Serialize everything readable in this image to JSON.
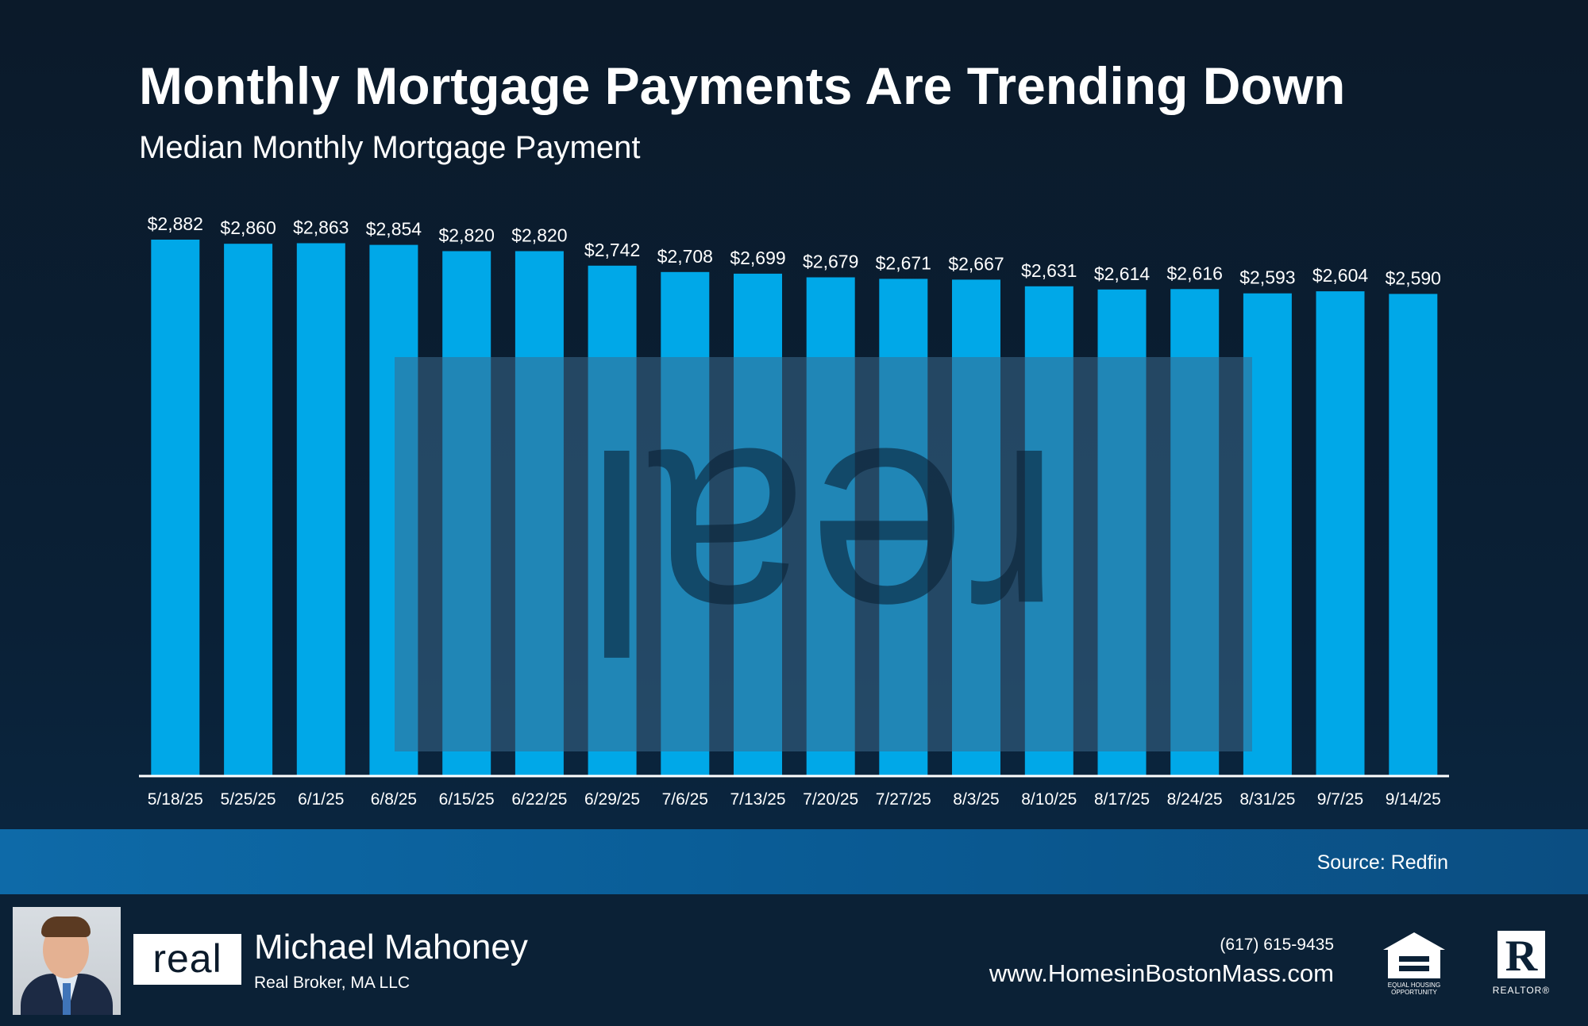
{
  "header": {
    "title": "Monthly Mortgage Payments Are Trending Down",
    "subtitle": "Median Monthly Mortgage Payment"
  },
  "chart_data": {
    "type": "bar",
    "title": "Median Monthly Mortgage Payment",
    "xlabel": "",
    "ylabel": "",
    "categories": [
      "5/18/25",
      "5/25/25",
      "6/1/25",
      "6/8/25",
      "6/15/25",
      "6/22/25",
      "6/29/25",
      "7/6/25",
      "7/13/25",
      "7/20/25",
      "7/27/25",
      "8/3/25",
      "8/10/25",
      "8/17/25",
      "8/24/25",
      "8/31/25",
      "9/7/25",
      "9/14/25"
    ],
    "values": [
      2882,
      2860,
      2863,
      2854,
      2820,
      2820,
      2742,
      2708,
      2699,
      2679,
      2671,
      2667,
      2631,
      2614,
      2616,
      2593,
      2604,
      2590
    ],
    "data_labels": [
      "$2,882",
      "$2,860",
      "$2,863",
      "$2,854",
      "$2,820",
      "$2,820",
      "$2,742",
      "$2,708",
      "$2,699",
      "$2,679",
      "$2,671",
      "$2,667",
      "$2,631",
      "$2,614",
      "$2,616",
      "$2,593",
      "$2,604",
      "$2,590"
    ],
    "ylim": [
      0,
      2882
    ],
    "grid": false,
    "legend": "none",
    "bar_color": "#00a8e8"
  },
  "watermark": {
    "text": "real"
  },
  "source": {
    "text": "Source: Redfin"
  },
  "footer": {
    "logo_text": "real",
    "agent_name": "Michael Mahoney",
    "company": "Real Broker, MA LLC",
    "phone": "(617) 615-9435",
    "website": "www.HomesinBostonMass.com",
    "eho_label": "EQUAL HOUSING OPPORTUNITY",
    "realtor_label": "REALTOR®",
    "icons": [
      "agent-photo",
      "equal-housing-icon",
      "realtor-icon"
    ]
  }
}
